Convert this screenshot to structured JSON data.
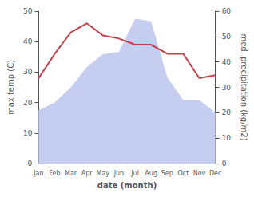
{
  "chart_data": {
    "type": "line",
    "categories": [
      "Jan",
      "Feb",
      "Mar",
      "Apr",
      "May",
      "Jun",
      "Jul",
      "Aug",
      "Sep",
      "Oct",
      "Nov",
      "Dec"
    ],
    "xlabel": "date (month)",
    "ylabel": "max temp (C)",
    "y2label": "med. precipitation (kg/m2)",
    "series": [
      {
        "type": "area",
        "axis": "y2",
        "color": "#c5cef0",
        "values": [
          21,
          24,
          30,
          38,
          43,
          44,
          57,
          56,
          34,
          25,
          25,
          20
        ]
      },
      {
        "type": "line",
        "color": "#c0404a",
        "values": [
          28,
          36,
          43,
          46,
          42,
          41,
          39,
          39,
          36,
          36,
          28,
          29
        ]
      }
    ],
    "ylim": [
      0,
      50
    ],
    "yticks": [
      0,
      10,
      20,
      30,
      40,
      50
    ],
    "y2lim": [
      0,
      60
    ],
    "y2ticks": [
      0,
      10,
      20,
      30,
      40,
      50,
      60
    ],
    "grid": false
  }
}
